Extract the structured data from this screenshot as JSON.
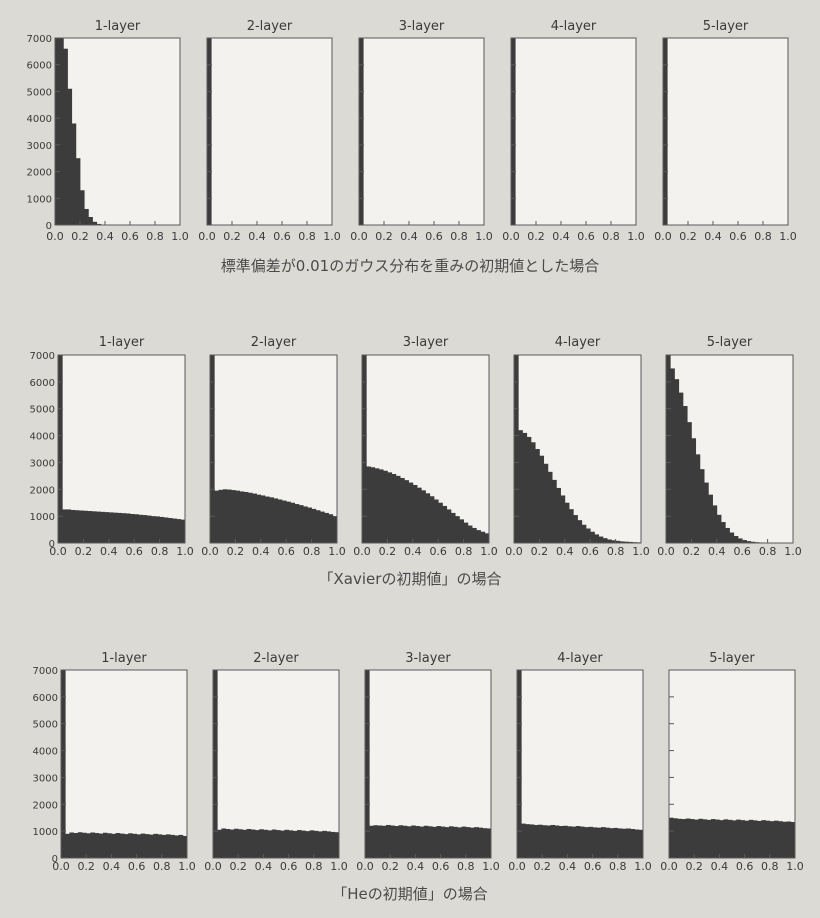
{
  "colors": {
    "bar": "#3c3c3c",
    "frame": "#5a5a5a",
    "panel": "#f3f2ee",
    "page": "#dcdad5"
  },
  "xticks": [
    "0.0",
    "0.2",
    "0.4",
    "0.6",
    "0.8",
    "1.0"
  ],
  "yticks": [
    "0",
    "1000",
    "2000",
    "3000",
    "4000",
    "5000",
    "6000",
    "7000"
  ],
  "chart_data": [
    {
      "type": "bar",
      "caption": "標準偏差が0.01のガウス分布を重みの初期値とした場合",
      "xlim": [
        0,
        1
      ],
      "ylim": [
        0,
        7000
      ],
      "bins": 30,
      "panels": [
        {
          "title": "1-layer",
          "values": [
            7000,
            7000,
            6600,
            5100,
            3800,
            2500,
            1300,
            600,
            300,
            120,
            40,
            10,
            0,
            0,
            0,
            0,
            0,
            0,
            0,
            0,
            0,
            0,
            0,
            0,
            0,
            0,
            0,
            0,
            0,
            0
          ]
        },
        {
          "title": "2-layer",
          "values": [
            7000,
            0,
            0,
            0,
            0,
            0,
            0,
            0,
            0,
            0,
            0,
            0,
            0,
            0,
            0,
            0,
            0,
            0,
            0,
            0,
            0,
            0,
            0,
            0,
            0,
            0,
            0,
            0,
            0,
            0
          ]
        },
        {
          "title": "3-layer",
          "values": [
            7000,
            0,
            0,
            0,
            0,
            0,
            0,
            0,
            0,
            0,
            0,
            0,
            0,
            0,
            0,
            0,
            0,
            0,
            0,
            0,
            0,
            0,
            0,
            0,
            0,
            0,
            0,
            0,
            0,
            0
          ]
        },
        {
          "title": "4-layer",
          "values": [
            7000,
            0,
            0,
            0,
            0,
            0,
            0,
            0,
            0,
            0,
            0,
            0,
            0,
            0,
            0,
            0,
            0,
            0,
            0,
            0,
            0,
            0,
            0,
            0,
            0,
            0,
            0,
            0,
            0,
            0
          ]
        },
        {
          "title": "5-layer",
          "values": [
            7000,
            0,
            0,
            0,
            0,
            0,
            0,
            0,
            0,
            0,
            0,
            0,
            0,
            0,
            0,
            0,
            0,
            0,
            0,
            0,
            0,
            0,
            0,
            0,
            0,
            0,
            0,
            0,
            0,
            0
          ]
        }
      ]
    },
    {
      "type": "bar",
      "caption": "「Xavierの初期値」の場合",
      "xlim": [
        0,
        1
      ],
      "ylim": [
        0,
        7000
      ],
      "bins": 30,
      "panels": [
        {
          "title": "1-layer",
          "values": [
            7000,
            1250,
            1250,
            1230,
            1220,
            1210,
            1200,
            1190,
            1180,
            1170,
            1160,
            1150,
            1140,
            1130,
            1120,
            1110,
            1100,
            1080,
            1070,
            1050,
            1040,
            1020,
            1000,
            990,
            970,
            950,
            930,
            910,
            890,
            870
          ]
        },
        {
          "title": "2-layer",
          "values": [
            7000,
            1950,
            1980,
            2000,
            1990,
            1970,
            1950,
            1920,
            1900,
            1870,
            1840,
            1800,
            1770,
            1730,
            1700,
            1660,
            1620,
            1580,
            1540,
            1500,
            1450,
            1410,
            1360,
            1320,
            1270,
            1220,
            1170,
            1120,
            1070,
            1000
          ]
        },
        {
          "title": "3-layer",
          "values": [
            7000,
            2850,
            2820,
            2780,
            2740,
            2690,
            2630,
            2570,
            2500,
            2420,
            2340,
            2250,
            2160,
            2060,
            1960,
            1850,
            1740,
            1620,
            1500,
            1380,
            1250,
            1120,
            1000,
            880,
            760,
            650,
            560,
            480,
            420,
            360
          ]
        },
        {
          "title": "4-layer",
          "values": [
            7000,
            4200,
            4100,
            3950,
            3750,
            3500,
            3250,
            2950,
            2650,
            2350,
            2050,
            1770,
            1500,
            1260,
            1040,
            850,
            680,
            540,
            420,
            320,
            240,
            180,
            130,
            100,
            80,
            60,
            50,
            40,
            30,
            25
          ]
        },
        {
          "title": "5-layer",
          "values": [
            7000,
            6500,
            6100,
            5600,
            5100,
            4500,
            3900,
            3300,
            2750,
            2250,
            1800,
            1400,
            1050,
            780,
            560,
            390,
            260,
            170,
            110,
            70,
            45,
            30,
            20,
            12,
            8,
            5,
            3,
            2,
            1,
            0
          ]
        }
      ]
    },
    {
      "type": "bar",
      "caption": "「Heの初期値」の場合",
      "xlim": [
        0,
        1
      ],
      "ylim": [
        0,
        7000
      ],
      "bins": 30,
      "panels": [
        {
          "title": "1-layer",
          "values": [
            7000,
            900,
            950,
            930,
            960,
            940,
            920,
            950,
            930,
            910,
            940,
            920,
            900,
            930,
            910,
            890,
            920,
            900,
            880,
            910,
            890,
            870,
            900,
            880,
            860,
            880,
            860,
            840,
            860,
            820
          ]
        },
        {
          "title": "2-layer",
          "values": [
            7000,
            1050,
            1100,
            1080,
            1060,
            1090,
            1070,
            1050,
            1080,
            1060,
            1040,
            1070,
            1050,
            1030,
            1060,
            1040,
            1020,
            1050,
            1030,
            1010,
            1040,
            1020,
            1000,
            1030,
            1010,
            990,
            1010,
            990,
            970,
            960
          ]
        },
        {
          "title": "3-layer",
          "values": [
            7000,
            1200,
            1220,
            1210,
            1200,
            1230,
            1210,
            1190,
            1220,
            1200,
            1180,
            1210,
            1190,
            1170,
            1200,
            1180,
            1160,
            1190,
            1170,
            1150,
            1180,
            1160,
            1140,
            1170,
            1150,
            1130,
            1150,
            1130,
            1110,
            1100
          ]
        },
        {
          "title": "4-layer",
          "values": [
            7000,
            1280,
            1260,
            1250,
            1230,
            1240,
            1220,
            1210,
            1230,
            1210,
            1190,
            1200,
            1180,
            1170,
            1190,
            1170,
            1150,
            1160,
            1140,
            1130,
            1150,
            1130,
            1110,
            1120,
            1100,
            1090,
            1100,
            1080,
            1060,
            1050
          ]
        },
        {
          "title": "5-layer",
          "values": [
            1500,
            1480,
            1460,
            1450,
            1470,
            1450,
            1430,
            1460,
            1440,
            1420,
            1450,
            1430,
            1410,
            1440,
            1420,
            1400,
            1430,
            1410,
            1390,
            1420,
            1400,
            1380,
            1410,
            1390,
            1370,
            1390,
            1370,
            1350,
            1360,
            1340
          ]
        }
      ]
    }
  ]
}
